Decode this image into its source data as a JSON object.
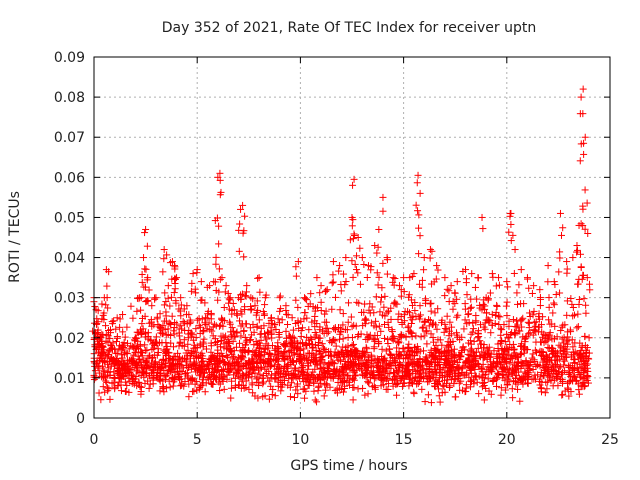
{
  "chart_data": {
    "type": "scatter",
    "title": "Day 352 of 2021, Rate Of TEC Index for receiver uptn",
    "xlabel": "GPS time / hours",
    "ylabel": "ROTI / TECUs",
    "xlim": [
      0,
      25
    ],
    "ylim": [
      0,
      0.09
    ],
    "x_ticks": [
      0,
      5,
      10,
      15,
      20,
      25
    ],
    "y_ticks": [
      0,
      0.01,
      0.02,
      0.03,
      0.04,
      0.05,
      0.06,
      0.07,
      0.08,
      0.09
    ],
    "x_tick_labels": [
      "0",
      "5",
      "10",
      "15",
      "20",
      "25"
    ],
    "y_tick_labels": [
      "0",
      "0.01",
      "0.02",
      "0.03",
      "0.04",
      "0.05",
      "0.06",
      "0.07",
      "0.08",
      "0.09"
    ],
    "grid": true,
    "marker": "plus",
    "color": "#ff0000",
    "series": [
      {
        "x": [
          0.0,
          0.1,
          0.2,
          0.3,
          0.4,
          0.5,
          0.6,
          0.8,
          1.0,
          1.2,
          1.5,
          1.8,
          2.0,
          2.2,
          2.4,
          2.5,
          2.6,
          2.8,
          3.0,
          3.2,
          3.4,
          3.6,
          3.8,
          3.9,
          4.0,
          4.2,
          4.5,
          4.8,
          5.0,
          5.2,
          5.4,
          5.6,
          5.8,
          6.0,
          6.1,
          6.2,
          6.4,
          6.6,
          6.8,
          7.0,
          7.1,
          7.2,
          7.4,
          7.6,
          7.8,
          8.0,
          8.3,
          8.6,
          9.0,
          9.3,
          9.6,
          9.9,
          10.2,
          10.5,
          10.8,
          11.0,
          11.3,
          11.6,
          11.9,
          12.2,
          12.5,
          12.6,
          12.8,
          13.0,
          13.3,
          13.6,
          13.8,
          14.0,
          14.2,
          14.5,
          14.8,
          15.0,
          15.3,
          15.5,
          15.7,
          15.8,
          16.0,
          16.3,
          16.6,
          17.0,
          17.3,
          17.6,
          18.0,
          18.3,
          18.6,
          18.8,
          19.0,
          19.3,
          19.6,
          20.0,
          20.2,
          20.4,
          20.7,
          21.0,
          21.3,
          21.6,
          22.0,
          22.3,
          22.6,
          22.9,
          23.2,
          23.4,
          23.5,
          23.6,
          23.7,
          23.8,
          23.9
        ],
        "y": [
          0.03,
          0.027,
          0.024,
          0.02,
          0.018,
          0.03,
          0.037,
          0.022,
          0.013,
          0.011,
          0.012,
          0.014,
          0.02,
          0.03,
          0.04,
          0.047,
          0.035,
          0.028,
          0.03,
          0.026,
          0.042,
          0.033,
          0.039,
          0.038,
          0.035,
          0.03,
          0.028,
          0.036,
          0.037,
          0.034,
          0.025,
          0.033,
          0.034,
          0.06,
          0.061,
          0.035,
          0.033,
          0.03,
          0.027,
          0.03,
          0.052,
          0.053,
          0.033,
          0.03,
          0.028,
          0.035,
          0.03,
          0.025,
          0.03,
          0.028,
          0.025,
          0.039,
          0.03,
          0.031,
          0.035,
          0.033,
          0.032,
          0.039,
          0.038,
          0.04,
          0.05,
          0.0595,
          0.045,
          0.04,
          0.038,
          0.043,
          0.047,
          0.055,
          0.04,
          0.035,
          0.033,
          0.035,
          0.035,
          0.036,
          0.0605,
          0.056,
          0.04,
          0.042,
          0.038,
          0.035,
          0.033,
          0.034,
          0.037,
          0.036,
          0.035,
          0.05,
          0.03,
          0.036,
          0.035,
          0.034,
          0.051,
          0.042,
          0.037,
          0.035,
          0.033,
          0.032,
          0.038,
          0.034,
          0.051,
          0.039,
          0.04,
          0.043,
          0.048,
          0.08,
          0.082,
          0.07,
          0.035
        ]
      }
    ],
    "band": {
      "description_values": "dense cluster of points between roughly 0.002 and 0.02 across the full 0-24 h range, mean about 0.01",
      "x_range": [
        0,
        24
      ],
      "y_typical_range": [
        0.003,
        0.02
      ],
      "y_mean": 0.01
    }
  }
}
